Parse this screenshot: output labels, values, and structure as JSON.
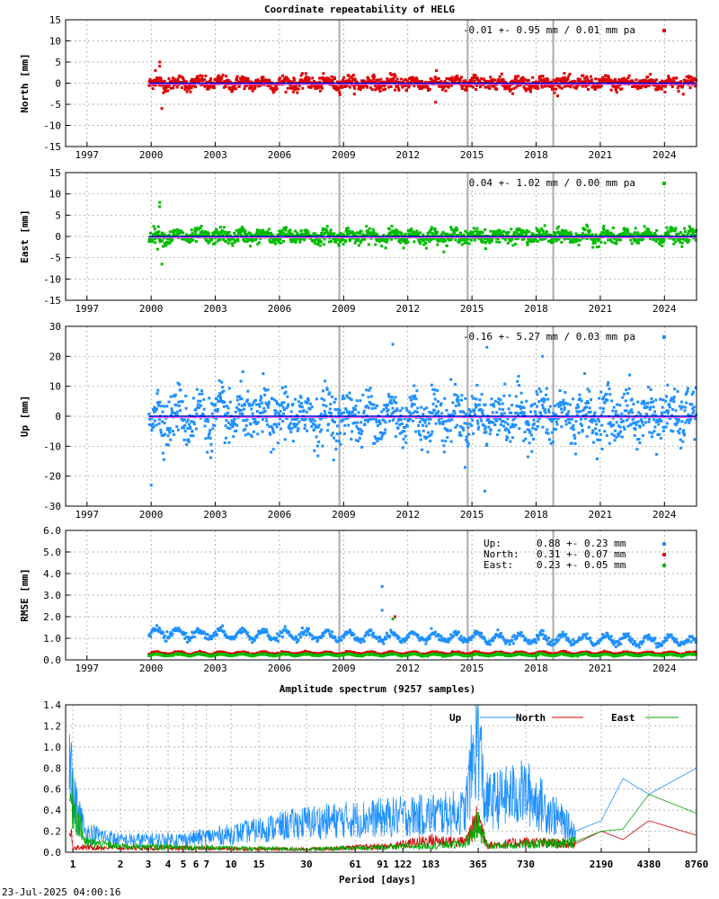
{
  "title": "Coordinate repeatability of HELG",
  "timestamp": "23-Jul-2025 04:00:16",
  "colors": {
    "north": "#dd0000",
    "east": "#00bb00",
    "up": "#1e90ff",
    "trend": "#0000cc",
    "grid": "#999999",
    "vline": "#aaaaaa"
  },
  "chart_data": [
    {
      "type": "scatter",
      "name": "north",
      "ylabel": "North [mm]",
      "ylim": [
        -15,
        15
      ],
      "yticks": [
        15,
        10,
        5,
        0,
        -5,
        -10,
        -15
      ],
      "xlim": [
        1996,
        2025.5
      ],
      "xticks": [
        1997,
        2000,
        2003,
        2006,
        2009,
        2012,
        2015,
        2018,
        2021,
        2024
      ],
      "annotation": "-0.01 +- 0.95 mm /  0.01 mm pa",
      "data_start": 1999.9,
      "spread_sd": 0.95,
      "equipment_changes": [
        2008.8,
        2014.8,
        2018.8
      ],
      "outliers": [
        {
          "x": 2000.4,
          "y": 5
        },
        {
          "x": 2000.4,
          "y": 4
        },
        {
          "x": 2000.5,
          "y": -6
        },
        {
          "x": 2000.2,
          "y": 3
        },
        {
          "x": 2013.3,
          "y": -4.5
        }
      ]
    },
    {
      "type": "scatter",
      "name": "east",
      "ylabel": "East [mm]",
      "ylim": [
        -15,
        15
      ],
      "yticks": [
        15,
        10,
        5,
        0,
        -5,
        -10,
        -15
      ],
      "xlim": [
        1996,
        2025.5
      ],
      "xticks": [
        1997,
        2000,
        2003,
        2006,
        2009,
        2012,
        2015,
        2018,
        2021,
        2024
      ],
      "annotation": " 0.04 +- 1.02 mm /  0.00 mm pa",
      "data_start": 1999.9,
      "spread_sd": 1.02,
      "equipment_changes": [
        2008.8,
        2014.8,
        2018.8
      ],
      "outliers": [
        {
          "x": 2000.4,
          "y": 8
        },
        {
          "x": 2000.4,
          "y": 7
        },
        {
          "x": 2000.5,
          "y": -6.5
        },
        {
          "x": 2000.3,
          "y": -3
        }
      ]
    },
    {
      "type": "scatter",
      "name": "up",
      "ylabel": "Up [mm]",
      "ylim": [
        -30,
        30
      ],
      "yticks": [
        30,
        20,
        10,
        0,
        -10,
        -20,
        -30
      ],
      "xlim": [
        1996,
        2025.5
      ],
      "xticks": [
        1997,
        2000,
        2003,
        2006,
        2009,
        2012,
        2015,
        2018,
        2021,
        2024
      ],
      "annotation": "-0.16 +- 5.27 mm /  0.03 mm pa",
      "data_start": 1999.9,
      "spread_sd": 5.27,
      "equipment_changes": [
        2008.8,
        2014.8,
        2018.8
      ],
      "outliers": [
        {
          "x": 2000.0,
          "y": -23
        },
        {
          "x": 2011.3,
          "y": 24
        },
        {
          "x": 2015.7,
          "y": 23
        },
        {
          "x": 2015.6,
          "y": -25
        },
        {
          "x": 2018.3,
          "y": 20
        }
      ]
    },
    {
      "type": "scatter",
      "name": "rmse",
      "ylabel": "RMSE [mm]",
      "ylim": [
        0,
        6
      ],
      "yticks": [
        "6.0",
        "5.0",
        "4.0",
        "3.0",
        "2.0",
        "1.0",
        "0.0"
      ],
      "xlim": [
        1996,
        2025.5
      ],
      "xticks": [
        1997,
        2000,
        2003,
        2006,
        2009,
        2012,
        2015,
        2018,
        2021,
        2024
      ],
      "legend": [
        {
          "label": "Up:",
          "value": "0.88 +- 0.23 mm",
          "color": "#1e90ff"
        },
        {
          "label": "North:",
          "value": "0.31 +- 0.07 mm",
          "color": "#dd0000"
        },
        {
          "label": "East:",
          "value": "0.23 +- 0.05 mm",
          "color": "#00bb00"
        }
      ],
      "series_means": {
        "up": 0.88,
        "north": 0.31,
        "east": 0.23
      },
      "equipment_changes": [
        2008.8,
        2014.8,
        2018.8
      ],
      "outliers": [
        {
          "x": 2010.8,
          "y": 3.4,
          "c": "up"
        },
        {
          "x": 2010.8,
          "y": 2.3,
          "c": "up"
        },
        {
          "x": 2011.4,
          "y": 2.0,
          "c": "north"
        },
        {
          "x": 2011.3,
          "y": 1.9,
          "c": "east"
        }
      ]
    },
    {
      "type": "line",
      "name": "spectrum",
      "title": "Amplitude spectrum (9257 samples)",
      "xlabel": "Period [days]",
      "ylim": [
        0,
        1.4
      ],
      "yticks": [
        "1.4",
        "1.2",
        "1.0",
        "0.8",
        "0.6",
        "0.4",
        "0.2",
        "0.0"
      ],
      "xscale": "log",
      "xlim": [
        0.9,
        8760
      ],
      "xticks": [
        1,
        2,
        3,
        4,
        5,
        6,
        7,
        10,
        15,
        30,
        61,
        91,
        122,
        183,
        365,
        730,
        2190,
        4380,
        8760
      ],
      "legend_position": "top-right",
      "series": [
        {
          "name": "Up",
          "color": "#1e90ff",
          "points": [
            [
              0.95,
              1.4
            ],
            [
              1,
              0.55
            ],
            [
              1.2,
              0.2
            ],
            [
              2,
              0.12
            ],
            [
              5,
              0.13
            ],
            [
              10,
              0.18
            ],
            [
              30,
              0.3
            ],
            [
              100,
              0.35
            ],
            [
              300,
              0.4
            ],
            [
              365,
              1.25
            ],
            [
              400,
              0.5
            ],
            [
              730,
              0.6
            ],
            [
              1500,
              0.2
            ],
            [
              2190,
              0.3
            ],
            [
              3000,
              0.7
            ],
            [
              4380,
              0.55
            ],
            [
              8760,
              0.8
            ]
          ]
        },
        {
          "name": "North",
          "color": "#cc0000",
          "points": [
            [
              1,
              0.05
            ],
            [
              5,
              0.04
            ],
            [
              30,
              0.03
            ],
            [
              100,
              0.06
            ],
            [
              183,
              0.12
            ],
            [
              300,
              0.1
            ],
            [
              365,
              0.33
            ],
            [
              420,
              0.07
            ],
            [
              730,
              0.1
            ],
            [
              1500,
              0.08
            ],
            [
              2190,
              0.2
            ],
            [
              3000,
              0.12
            ],
            [
              4380,
              0.3
            ],
            [
              8760,
              0.16
            ]
          ]
        },
        {
          "name": "East",
          "color": "#00aa00",
          "points": [
            [
              0.95,
              0.55
            ],
            [
              1,
              0.5
            ],
            [
              1.2,
              0.1
            ],
            [
              2,
              0.06
            ],
            [
              5,
              0.05
            ],
            [
              30,
              0.03
            ],
            [
              100,
              0.05
            ],
            [
              300,
              0.08
            ],
            [
              365,
              0.28
            ],
            [
              420,
              0.06
            ],
            [
              730,
              0.08
            ],
            [
              1500,
              0.1
            ],
            [
              2190,
              0.2
            ],
            [
              3000,
              0.22
            ],
            [
              4380,
              0.55
            ],
            [
              8760,
              0.37
            ]
          ]
        }
      ]
    }
  ]
}
